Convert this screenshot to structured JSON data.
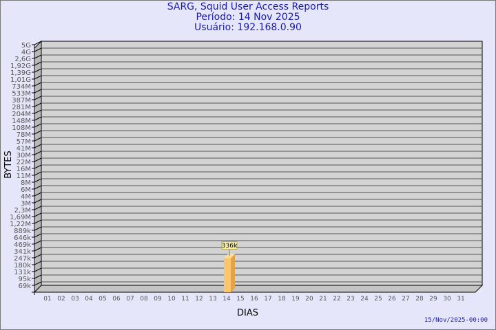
{
  "header": {
    "title": "SARG, Squid User Access Reports",
    "period": "Período: 14 Nov 2025",
    "user": "Usuário: 192.168.0.90"
  },
  "footer": {
    "timestamp": "15/Nov/2025-00:00"
  },
  "colors": {
    "background": "#e6e6fa",
    "title": "#1a1aa6",
    "plot": "#d3d3d3",
    "bar": "#ffc56b",
    "bar_side": "#e0a44c"
  },
  "chart_data": {
    "type": "bar",
    "title": "SARG, Squid User Access Reports",
    "xlabel": "DIAS",
    "ylabel": "BYTES",
    "y_scale": "log",
    "grid": true,
    "y_ticks": [
      "5G",
      "4G",
      "2,6G",
      "1,92G",
      "1,39G",
      "1,01G",
      "734M",
      "533M",
      "387M",
      "281M",
      "204M",
      "148M",
      "108M",
      "78M",
      "57M",
      "41M",
      "30M",
      "22M",
      "16M",
      "11M",
      "8M",
      "6M",
      "4M",
      "3M",
      "2,3M",
      "1,69M",
      "1,22M",
      "889k",
      "646k",
      "469k",
      "341k",
      "247k",
      "180k",
      "131k",
      "95k",
      "69k"
    ],
    "categories": [
      "01",
      "02",
      "03",
      "04",
      "05",
      "06",
      "07",
      "08",
      "09",
      "10",
      "11",
      "12",
      "13",
      "14",
      "15",
      "16",
      "17",
      "18",
      "19",
      "20",
      "21",
      "22",
      "23",
      "24",
      "25",
      "26",
      "27",
      "28",
      "29",
      "30",
      "31"
    ],
    "series": [
      {
        "values": [
          {
            "x": "14",
            "y": 336000,
            "label": "336k"
          }
        ]
      }
    ]
  }
}
